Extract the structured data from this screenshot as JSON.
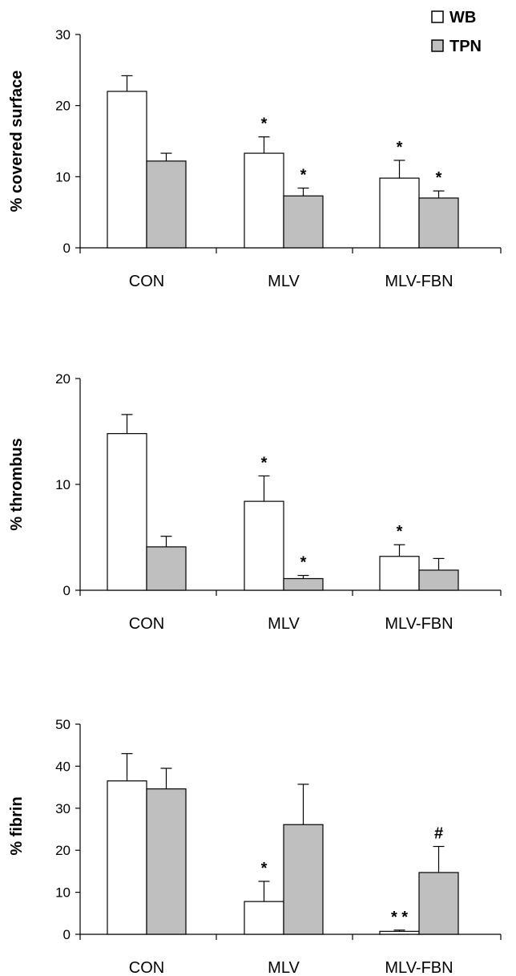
{
  "legend": {
    "items": [
      {
        "label": "WB",
        "color": "#ffffff"
      },
      {
        "label": "TPN",
        "color": "#bfbfbf"
      }
    ],
    "placement": "top-right"
  },
  "chart_data": [
    {
      "type": "bar",
      "ylabel": "% covered surface",
      "categories": [
        "CON",
        "MLV",
        "MLV-FBN"
      ],
      "ylim": [
        0,
        30
      ],
      "yticks": [
        0,
        10,
        20,
        30
      ],
      "grid": false,
      "series": [
        {
          "name": "WB",
          "color": "#ffffff",
          "values": [
            22,
            13.3,
            9.8
          ],
          "errors": [
            2.2,
            2.3,
            2.5
          ],
          "annotations": [
            "",
            "*",
            "*"
          ]
        },
        {
          "name": "TPN",
          "color": "#bfbfbf",
          "values": [
            12.2,
            7.3,
            7.0
          ],
          "errors": [
            1.1,
            1.1,
            1.0
          ],
          "annotations": [
            "",
            "*",
            "*"
          ]
        }
      ]
    },
    {
      "type": "bar",
      "ylabel": "% thrombus",
      "categories": [
        "CON",
        "MLV",
        "MLV-FBN"
      ],
      "ylim": [
        0,
        20
      ],
      "yticks": [
        0,
        10,
        20
      ],
      "grid": false,
      "series": [
        {
          "name": "WB",
          "color": "#ffffff",
          "values": [
            14.8,
            8.4,
            3.2
          ],
          "errors": [
            1.8,
            2.4,
            1.1
          ],
          "annotations": [
            "",
            "*",
            "*"
          ]
        },
        {
          "name": "TPN",
          "color": "#bfbfbf",
          "values": [
            4.1,
            1.1,
            1.9
          ],
          "errors": [
            1.0,
            0.3,
            1.1
          ],
          "annotations": [
            "",
            "*",
            ""
          ]
        }
      ]
    },
    {
      "type": "bar",
      "ylabel": "% fibrin",
      "categories": [
        "CON",
        "MLV",
        "MLV-FBN"
      ],
      "ylim": [
        0,
        50
      ],
      "yticks": [
        0,
        10,
        20,
        30,
        40,
        50
      ],
      "grid": false,
      "series": [
        {
          "name": "WB",
          "color": "#ffffff",
          "values": [
            36.5,
            7.8,
            0.7
          ],
          "errors": [
            6.5,
            4.8,
            0.3
          ],
          "annotations": [
            "",
            "*",
            "* *"
          ]
        },
        {
          "name": "TPN",
          "color": "#bfbfbf",
          "values": [
            34.6,
            26.1,
            14.7
          ],
          "errors": [
            4.9,
            9.6,
            6.2
          ],
          "annotations": [
            "",
            "",
            "#"
          ]
        }
      ]
    }
  ]
}
